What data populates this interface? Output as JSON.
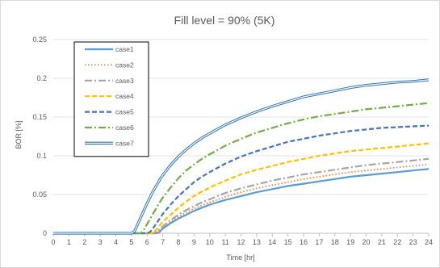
{
  "chart_data": {
    "type": "line",
    "title": "Fill level = 90% (5K)",
    "xlabel": "Time [hr]",
    "ylabel": "BOR [%]",
    "xlim": [
      0,
      24
    ],
    "ylim": [
      0,
      0.25
    ],
    "x_ticks": [
      "0",
      "1",
      "2",
      "3",
      "4",
      "5",
      "6",
      "7",
      "8",
      "9",
      "10",
      "11",
      "12",
      "13",
      "14",
      "15",
      "16",
      "17",
      "18",
      "19",
      "20",
      "21",
      "22",
      "23",
      "24"
    ],
    "y_ticks": [
      "0",
      "0.05",
      "0.1",
      "0.15",
      "0.2",
      "0.25"
    ],
    "grid": "horizontal",
    "legend_position": "top-left",
    "x": [
      0,
      1,
      2,
      3,
      4,
      5,
      5.2,
      5.4,
      5.6,
      5.8,
      6,
      6.2,
      6.4,
      6.6,
      6.8,
      7,
      7.5,
      8,
      8.5,
      9,
      9.5,
      10,
      11,
      12,
      13,
      14,
      15,
      16,
      17,
      18,
      19,
      20,
      21,
      22,
      23,
      24
    ],
    "series": [
      {
        "name": "case1",
        "color": "#5b9bd5",
        "style": "solid",
        "values": [
          0,
          0,
          0,
          0,
          0,
          0,
          0,
          0,
          0,
          0,
          0,
          0,
          0,
          0,
          0.002,
          0.006,
          0.013,
          0.019,
          0.024,
          0.029,
          0.033,
          0.037,
          0.043,
          0.048,
          0.053,
          0.057,
          0.061,
          0.064,
          0.067,
          0.07,
          0.073,
          0.075,
          0.077,
          0.079,
          0.081,
          0.083
        ]
      },
      {
        "name": "case2",
        "color": "#ed7d31",
        "style": "dotted",
        "values": [
          0,
          0,
          0,
          0,
          0,
          0,
          0,
          0,
          0,
          0,
          0,
          0,
          0,
          0.001,
          0.004,
          0.008,
          0.015,
          0.021,
          0.027,
          0.032,
          0.036,
          0.04,
          0.047,
          0.053,
          0.058,
          0.062,
          0.066,
          0.07,
          0.073,
          0.076,
          0.079,
          0.081,
          0.083,
          0.085,
          0.087,
          0.089
        ]
      },
      {
        "name": "case3",
        "color": "#a5a5a5",
        "style": "dashdot",
        "values": [
          0,
          0,
          0,
          0,
          0,
          0,
          0,
          0,
          0,
          0,
          0,
          0,
          0,
          0.002,
          0.005,
          0.009,
          0.017,
          0.024,
          0.03,
          0.035,
          0.04,
          0.044,
          0.052,
          0.058,
          0.063,
          0.068,
          0.072,
          0.076,
          0.079,
          0.082,
          0.085,
          0.088,
          0.09,
          0.092,
          0.094,
          0.096
        ]
      },
      {
        "name": "case4",
        "color": "#ffc000",
        "style": "dashed",
        "values": [
          0,
          0,
          0,
          0,
          0,
          0,
          0,
          0,
          0,
          0,
          0,
          0,
          0.001,
          0.005,
          0.01,
          0.015,
          0.024,
          0.033,
          0.041,
          0.048,
          0.054,
          0.059,
          0.068,
          0.076,
          0.082,
          0.087,
          0.092,
          0.096,
          0.1,
          0.103,
          0.106,
          0.108,
          0.11,
          0.112,
          0.114,
          0.116
        ]
      },
      {
        "name": "case5",
        "color": "#4472c4",
        "style": "dashed",
        "values": [
          0,
          0,
          0,
          0,
          0,
          0,
          0,
          0,
          0,
          0,
          0,
          0.002,
          0.007,
          0.013,
          0.019,
          0.025,
          0.037,
          0.048,
          0.057,
          0.066,
          0.073,
          0.079,
          0.09,
          0.099,
          0.106,
          0.112,
          0.118,
          0.122,
          0.126,
          0.129,
          0.132,
          0.134,
          0.136,
          0.137,
          0.138,
          0.139
        ]
      },
      {
        "name": "case6",
        "color": "#70ad47",
        "style": "dashdot",
        "values": [
          0,
          0,
          0,
          0,
          0,
          0,
          0,
          0,
          0,
          0.005,
          0.012,
          0.019,
          0.026,
          0.033,
          0.04,
          0.046,
          0.059,
          0.071,
          0.081,
          0.089,
          0.096,
          0.102,
          0.113,
          0.122,
          0.13,
          0.136,
          0.142,
          0.147,
          0.151,
          0.154,
          0.157,
          0.16,
          0.162,
          0.164,
          0.166,
          0.168
        ]
      },
      {
        "name": "case7",
        "color": "#2e75b6",
        "style": "double",
        "values": [
          0,
          0,
          0,
          0,
          0,
          0,
          0.003,
          0.012,
          0.021,
          0.03,
          0.039,
          0.047,
          0.055,
          0.062,
          0.069,
          0.075,
          0.088,
          0.099,
          0.108,
          0.116,
          0.123,
          0.129,
          0.14,
          0.149,
          0.157,
          0.164,
          0.17,
          0.176,
          0.18,
          0.184,
          0.188,
          0.191,
          0.193,
          0.195,
          0.196,
          0.198
        ]
      }
    ]
  }
}
